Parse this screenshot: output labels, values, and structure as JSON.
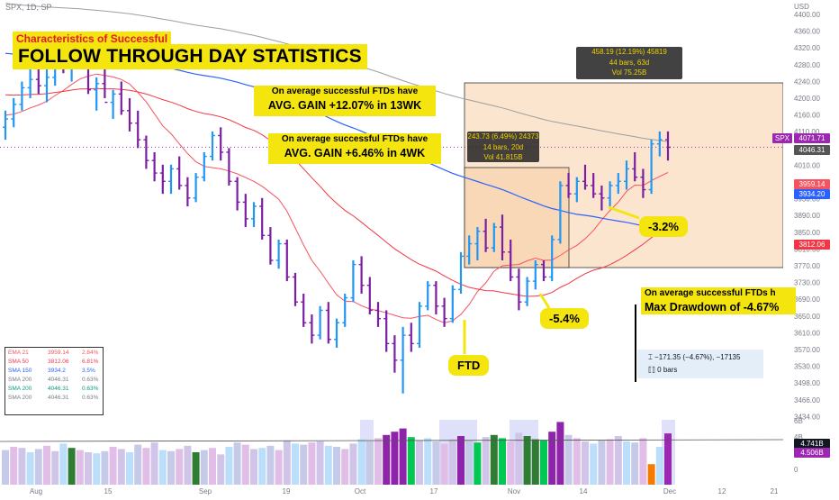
{
  "symbol_bar": "SPX, 1D, SP",
  "currency": "USD",
  "headline": {
    "subtitle": "Characteristics of Successful",
    "title": "FOLLOW THROUGH DAY STATISTICS"
  },
  "callouts": {
    "wk13": {
      "line1": "On average successful FTDs have",
      "line2": "AVG. GAIN +12.07% in 13WK"
    },
    "wk4": {
      "line1": "On average successful FTDs have",
      "line2": "AVG. GAIN +6.46% in 4WK"
    },
    "drawdown": {
      "line1": "On average successful FTDs h",
      "line2": "Max Drawdown of -4.67%"
    }
  },
  "tags": {
    "ftd": "FTD",
    "dd54": "-5.4%",
    "dd32": "-3.2%"
  },
  "measure_13wk": {
    "line1": "458.19 (12.19%) 45819",
    "line2": "44 bars, 63d",
    "line3": "Vol 75.25B"
  },
  "measure_4wk": {
    "line1": "243.73 (6.49%) 24373",
    "line2": "14 bars, 20d",
    "line3": "Vol 41.815B"
  },
  "drawdown_info": {
    "line1": "−171.35 (−4.67%), −17135",
    "line2": "0 bars"
  },
  "price_axis": {
    "ticks": [
      "4400.00",
      "4360.00",
      "4320.00",
      "4280.00",
      "4240.00",
      "4200.00",
      "4160.00",
      "4110.00",
      "4070.00",
      "4010.00",
      "3970.00",
      "3930.00",
      "3890.00",
      "3850.00",
      "3810.00",
      "3770.00",
      "3730.00",
      "3690.00",
      "3650.00",
      "3610.00",
      "3570.00",
      "3530.00",
      "3498.00",
      "3466.00",
      "3434.00"
    ],
    "labels": [
      {
        "text": "SPX",
        "value": "4071.71",
        "color": "#9c27b0"
      },
      {
        "text": "",
        "value": "4046.31",
        "color": "#555555"
      },
      {
        "text": "",
        "value": "3959.14",
        "color": "#f7525f"
      },
      {
        "text": "",
        "value": "3934.20",
        "color": "#2962ff"
      },
      {
        "text": "",
        "value": "3812.06",
        "color": "#f23645"
      }
    ]
  },
  "volume_axis": {
    "ticks": [
      "6B",
      "4B",
      "2B",
      "0"
    ],
    "labels": [
      {
        "value": "4.741B",
        "color": "#131722"
      },
      {
        "value": "4.506B",
        "color": "#9c27b0"
      }
    ]
  },
  "time_axis": [
    "Aug",
    "15",
    "Sep",
    "19",
    "Oct",
    "17",
    "Nov",
    "14",
    "Dec",
    "12",
    "21"
  ],
  "legend": [
    {
      "name": "EMA 21",
      "value": "3959.14",
      "pct": "2.84%",
      "color": "#f7525f"
    },
    {
      "name": "SMA 50",
      "value": "3812.06",
      "pct": "6.81%",
      "color": "#f23645"
    },
    {
      "name": "SMA 150",
      "value": "3934.2",
      "pct": "3.5%",
      "color": "#2962ff"
    },
    {
      "name": "SMA 200",
      "value": "4046.31",
      "pct": "0.63%",
      "color": "#787b86"
    },
    {
      "name": "SMA 200",
      "value": "4046.31",
      "pct": "0.63%",
      "color": "#089981"
    },
    {
      "name": "SMA 200",
      "value": "4046.31",
      "pct": "0.63%",
      "color": "#787b86"
    }
  ],
  "colors": {
    "up": "#2196f3",
    "down": "#7b1fa2",
    "ema21": "#f7525f",
    "sma50": "#f23645",
    "sma150": "#2962ff",
    "sma200": "#9e9e9e",
    "highlight": "#f5e50f",
    "zone": "#fbe5cf"
  },
  "chart_data": {
    "type": "ohlc",
    "ylim": [
      3434,
      4400
    ],
    "bars": [
      [
        4120,
        4160,
        4090,
        4140
      ],
      [
        4140,
        4190,
        4120,
        4175
      ],
      [
        4175,
        4230,
        4160,
        4215
      ],
      [
        4215,
        4260,
        4190,
        4235
      ],
      [
        4235,
        4280,
        4200,
        4220
      ],
      [
        4220,
        4260,
        4180,
        4240
      ],
      [
        4240,
        4300,
        4220,
        4290
      ],
      [
        4290,
        4320,
        4250,
        4270
      ],
      [
        4270,
        4310,
        4230,
        4295
      ],
      [
        4295,
        4330,
        4260,
        4280
      ],
      [
        4280,
        4300,
        4200,
        4210
      ],
      [
        4210,
        4240,
        4160,
        4225
      ],
      [
        4225,
        4260,
        4190,
        4180
      ],
      [
        4180,
        4210,
        4140,
        4200
      ],
      [
        4200,
        4230,
        4150,
        4160
      ],
      [
        4160,
        4190,
        4110,
        4130
      ],
      [
        4130,
        4160,
        4070,
        4090
      ],
      [
        4090,
        4100,
        4020,
        4040
      ],
      [
        4040,
        4060,
        3990,
        4010
      ],
      [
        4010,
        4030,
        3960,
        3990
      ],
      [
        3990,
        4030,
        3960,
        4020
      ],
      [
        4020,
        4050,
        3970,
        3980
      ],
      [
        3980,
        4000,
        3930,
        3950
      ],
      [
        3950,
        4010,
        3940,
        4000
      ],
      [
        4000,
        4060,
        3990,
        4050
      ],
      [
        4050,
        4110,
        4040,
        4100
      ],
      [
        4100,
        4120,
        4040,
        4060
      ],
      [
        4060,
        4070,
        3980,
        3990
      ],
      [
        3990,
        4000,
        3920,
        3940
      ],
      [
        3940,
        3960,
        3880,
        3900
      ],
      [
        3900,
        3940,
        3880,
        3930
      ],
      [
        3930,
        3950,
        3850,
        3860
      ],
      [
        3860,
        3880,
        3790,
        3800
      ],
      [
        3800,
        3850,
        3780,
        3840
      ],
      [
        3840,
        3850,
        3750,
        3760
      ],
      [
        3760,
        3770,
        3690,
        3700
      ],
      [
        3700,
        3720,
        3640,
        3650
      ],
      [
        3650,
        3670,
        3600,
        3620
      ],
      [
        3620,
        3690,
        3610,
        3680
      ],
      [
        3680,
        3700,
        3600,
        3610
      ],
      [
        3610,
        3660,
        3590,
        3650
      ],
      [
        3650,
        3720,
        3640,
        3710
      ],
      [
        3710,
        3800,
        3700,
        3790
      ],
      [
        3790,
        3810,
        3720,
        3740
      ],
      [
        3740,
        3760,
        3670,
        3680
      ],
      [
        3680,
        3700,
        3640,
        3660
      ],
      [
        3660,
        3680,
        3580,
        3600
      ],
      [
        3600,
        3620,
        3530,
        3560
      ],
      [
        3560,
        3640,
        3480,
        3620
      ],
      [
        3620,
        3650,
        3580,
        3600
      ],
      [
        3600,
        3700,
        3590,
        3690
      ],
      [
        3690,
        3750,
        3680,
        3740
      ],
      [
        3740,
        3750,
        3670,
        3690
      ],
      [
        3690,
        3710,
        3640,
        3660
      ],
      [
        3660,
        3740,
        3650,
        3730
      ],
      [
        3730,
        3820,
        3720,
        3810
      ],
      [
        3810,
        3860,
        3790,
        3840
      ],
      [
        3840,
        3880,
        3800,
        3870
      ],
      [
        3870,
        3900,
        3820,
        3830
      ],
      [
        3830,
        3890,
        3820,
        3880
      ],
      [
        3880,
        3910,
        3800,
        3820
      ],
      [
        3820,
        3850,
        3750,
        3760
      ],
      [
        3760,
        3780,
        3680,
        3700
      ],
      [
        3700,
        3760,
        3690,
        3750
      ],
      [
        3750,
        3800,
        3730,
        3790
      ],
      [
        3790,
        3800,
        3750,
        3760
      ],
      [
        3760,
        3860,
        3750,
        3850
      ],
      [
        3850,
        3990,
        3840,
        3980
      ],
      [
        3980,
        4010,
        3950,
        3960
      ],
      [
        3960,
        4000,
        3940,
        3990
      ],
      [
        3990,
        4030,
        3970,
        3980
      ],
      [
        3980,
        4010,
        3950,
        3960
      ],
      [
        3960,
        3980,
        3920,
        3950
      ],
      [
        3950,
        3990,
        3930,
        3980
      ],
      [
        3980,
        4010,
        3960,
        3990
      ],
      [
        3990,
        4040,
        3970,
        4020
      ],
      [
        4020,
        4060,
        3990,
        4000
      ],
      [
        4000,
        4020,
        3950,
        3970
      ],
      [
        3970,
        4090,
        3960,
        4080
      ],
      [
        4080,
        4110,
        4050,
        4090
      ],
      [
        4090,
        4110,
        4040,
        4072
      ]
    ],
    "volume": [
      3.2,
      3.5,
      3.4,
      3.0,
      3.3,
      3.6,
      3.1,
      3.8,
      3.4,
      3.2,
      3.0,
      2.9,
      3.1,
      3.5,
      3.3,
      3.0,
      3.7,
      3.4,
      3.9,
      3.2,
      3.1,
      3.3,
      3.6,
      3.0,
      3.2,
      3.4,
      2.8,
      3.5,
      3.9,
      3.7,
      3.3,
      3.4,
      3.6,
      3.2,
      4.1,
      3.8,
      3.7,
      3.9,
      4.0,
      3.6,
      3.5,
      3.3,
      3.8,
      4.2,
      4.0,
      4.3,
      4.6,
      4.9,
      5.2,
      4.4,
      4.1,
      4.3,
      4.0,
      3.8,
      4.2,
      4.5,
      4.1,
      3.9,
      4.4,
      4.6,
      4.3,
      4.0,
      4.8,
      4.5,
      4.2,
      4.1,
      4.9,
      5.8,
      4.6,
      4.3,
      4.0,
      3.8,
      4.1,
      4.2,
      4.5,
      4.0,
      3.9,
      4.3,
      1.9,
      3.5,
      4.74
    ]
  }
}
